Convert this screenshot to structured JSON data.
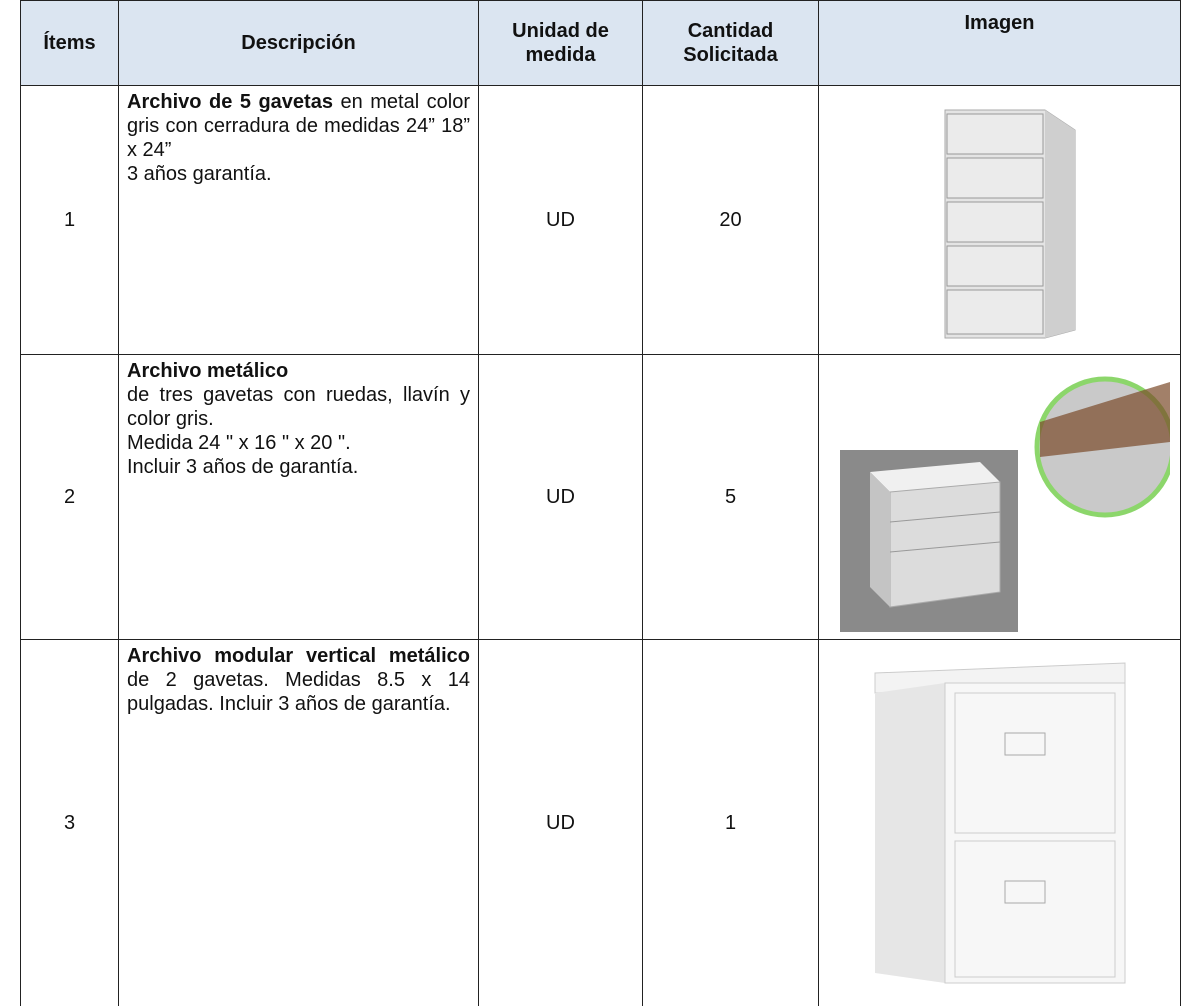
{
  "table": {
    "headers": [
      "Ítems",
      "Descripción",
      "Unidad de medida",
      "Cantidad Solicitada",
      "Imagen"
    ],
    "rows": [
      {
        "item": "1",
        "description_bold": "Archivo de 5 gavetas",
        "description": " en metal color gris con cerradura de medidas 24” 18” x 24”\n3 años garantía.",
        "unit": "UD",
        "quantity": "20"
      },
      {
        "item": "2",
        "description_bold": "Archivo metálico",
        "description": "\nde tres gavetas con ruedas, llavín y color gris.\nMedida 24 \" x 16 \" x 20 \".\nIncluir 3 años de garantía.",
        "unit": "UD",
        "quantity": "5"
      },
      {
        "item": "3",
        "description_bold": "Archivo modular vertical metálico",
        "description": " de 2 gavetas. Medidas 8.5 x 14 pulgadas. Incluir 3 años de garantía.",
        "unit": "UD",
        "quantity": "1"
      }
    ]
  }
}
